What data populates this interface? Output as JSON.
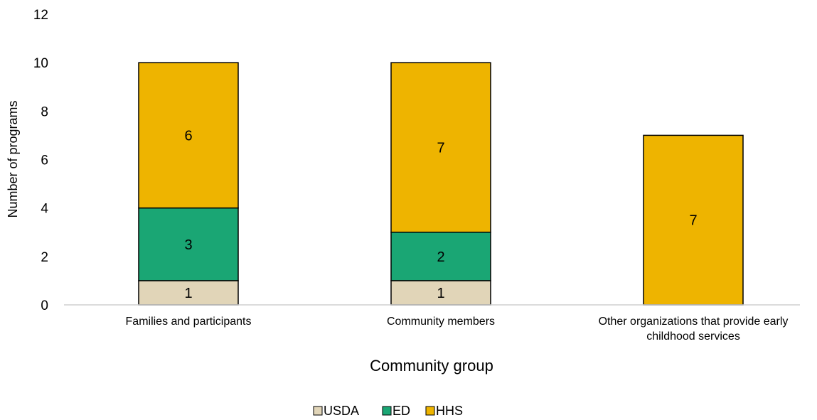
{
  "chart_data": {
    "type": "bar",
    "stacked": true,
    "categories": [
      [
        "Families and participants"
      ],
      [
        "Community members"
      ],
      [
        "Other organizations that provide early",
        "childhood services"
      ]
    ],
    "series": [
      {
        "name": "USDA",
        "color": "#e1d5b8",
        "values": [
          1,
          1,
          0
        ]
      },
      {
        "name": "ED",
        "color": "#1aa674",
        "values": [
          3,
          2,
          0
        ]
      },
      {
        "name": "HHS",
        "color": "#eeb400",
        "values": [
          6,
          7,
          7
        ]
      }
    ],
    "xlabel": "Community group",
    "ylabel": "Number of programs",
    "ylim": [
      0,
      12
    ],
    "yticks": [
      0,
      2,
      4,
      6,
      8,
      10,
      12
    ],
    "grid": false,
    "legend_position": "bottom"
  }
}
